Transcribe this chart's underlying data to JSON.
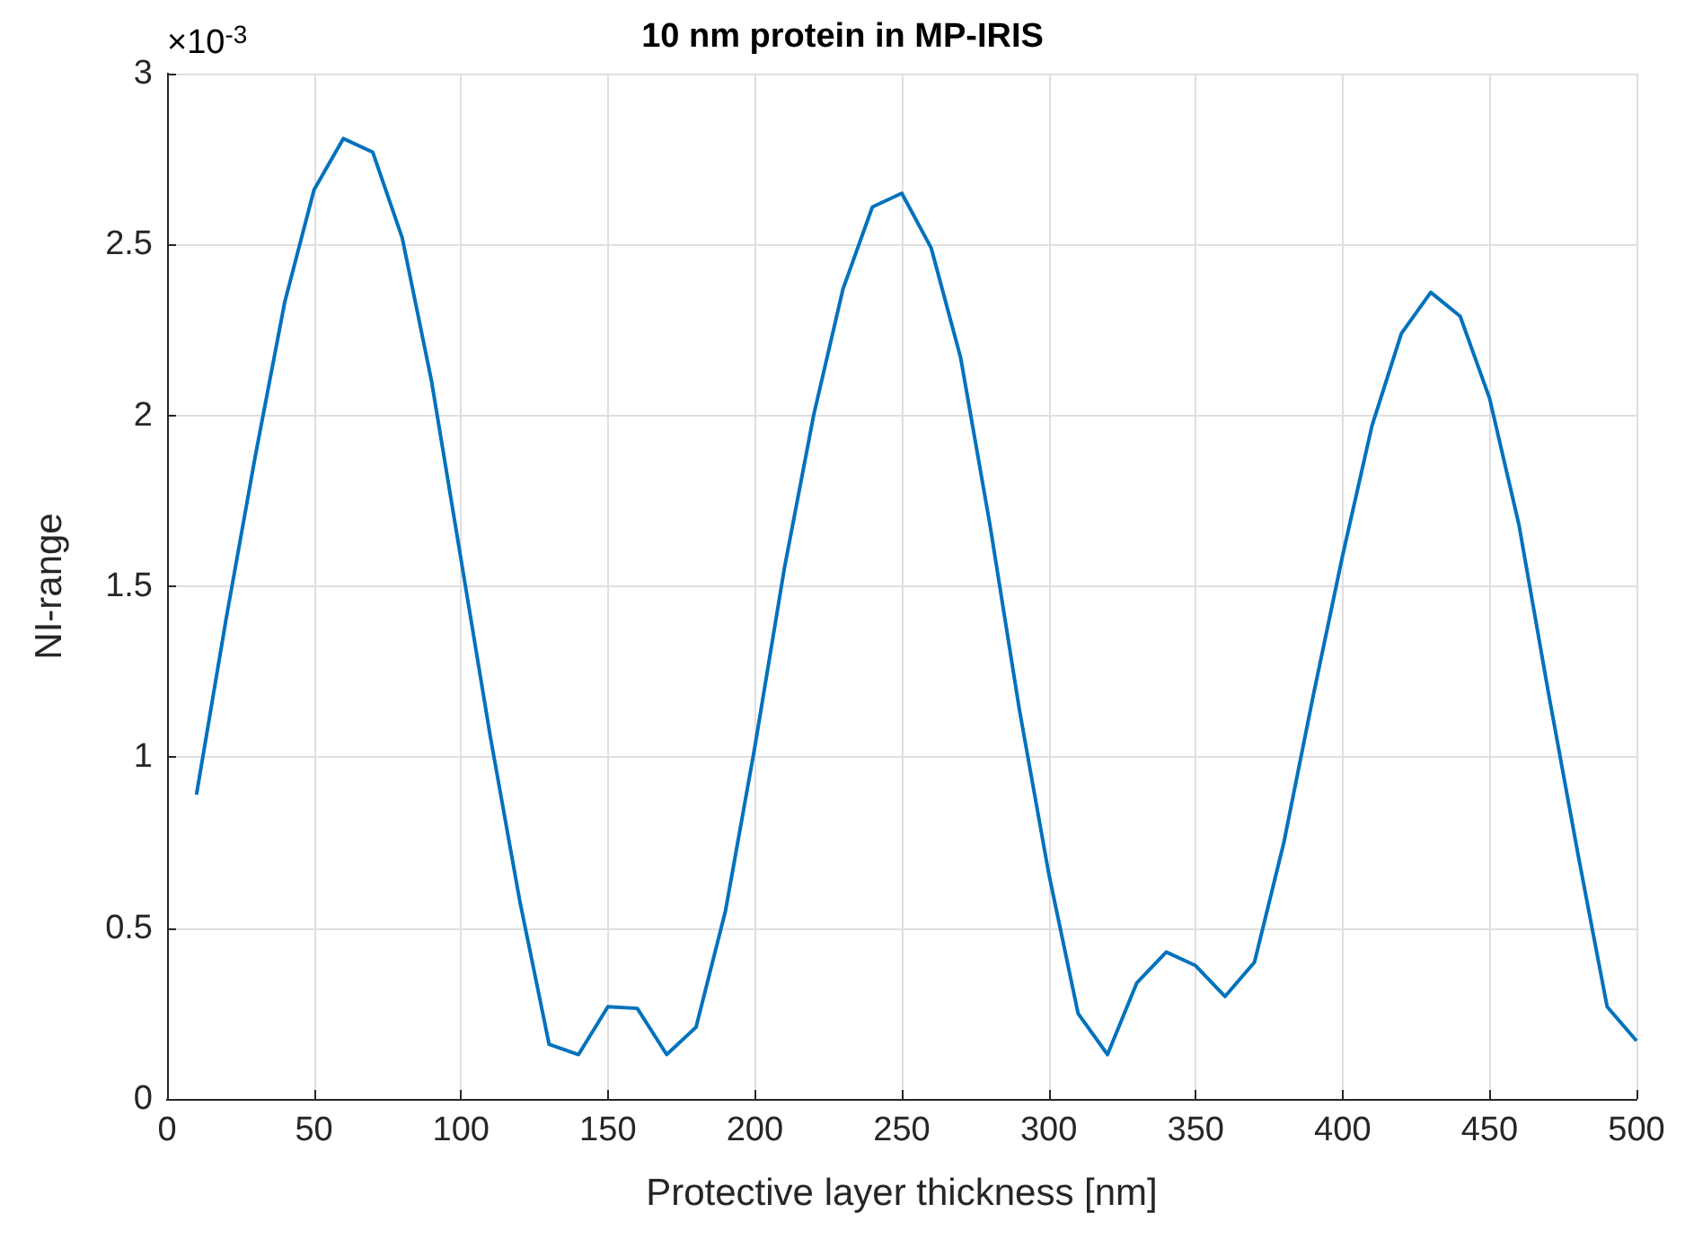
{
  "chart_data": {
    "type": "line",
    "title": "10 nm protein in MP-IRIS",
    "xlabel": "Protective layer thickness [nm]",
    "ylabel": "NI-range",
    "annotations": [
      "×10$^{-3}$"
    ],
    "x": [
      10,
      20,
      30,
      40,
      50,
      60,
      70,
      80,
      90,
      100,
      110,
      120,
      130,
      140,
      150,
      160,
      170,
      180,
      190,
      200,
      210,
      220,
      230,
      240,
      250,
      260,
      270,
      280,
      290,
      300,
      310,
      320,
      330,
      340,
      350,
      360,
      370,
      380,
      390,
      400,
      410,
      420,
      430,
      440,
      450,
      460,
      470,
      480,
      490,
      500
    ],
    "series": [
      {
        "color": "#0072bd",
        "values": [
          0.89,
          1.4,
          1.88,
          2.33,
          2.66,
          2.81,
          2.77,
          2.52,
          2.1,
          1.58,
          1.06,
          0.58,
          0.16,
          0.13,
          0.27,
          0.265,
          0.13,
          0.21,
          0.55,
          1.03,
          1.55,
          2.0,
          2.37,
          2.61,
          2.65,
          2.49,
          2.17,
          1.68,
          1.14,
          0.66,
          0.25,
          0.13,
          0.34,
          0.43,
          0.39,
          0.3,
          0.4,
          0.75,
          1.18,
          1.59,
          1.97,
          2.24,
          2.36,
          2.29,
          2.05,
          1.68,
          1.19,
          0.72,
          0.27,
          0.17
        ]
      }
    ],
    "xlim": [
      0,
      500
    ],
    "xticks": [
      0,
      50,
      100,
      150,
      200,
      250,
      300,
      350,
      400,
      450,
      500
    ],
    "ylim": [
      0,
      3
    ],
    "yticks": [
      0,
      0.5,
      1,
      1.5,
      2,
      2.5,
      3
    ],
    "grid": true,
    "marker": "none",
    "line_style": "solid"
  }
}
